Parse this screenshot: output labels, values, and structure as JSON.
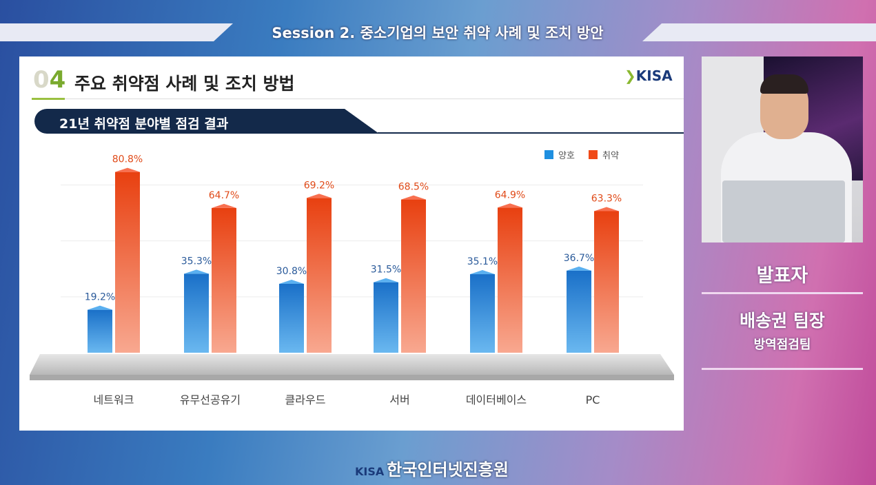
{
  "banner": {
    "title": "Session  2. 중소기업의 보안 취약 사례 및 조치 방안"
  },
  "slide": {
    "section_number_prefix": "0",
    "section_number": "4",
    "title": "주요 취약점 사례 및 조치 방법",
    "logo": "KISA",
    "subtitle": "21년 취약점 분야별 점검 결과"
  },
  "chart_data": {
    "type": "bar",
    "title": "21년 취약점 분야별 점검 결과",
    "categories": [
      "네트워크",
      "유무선공유기",
      "클라우드",
      "서버",
      "데이터베이스",
      "PC"
    ],
    "series": [
      {
        "name": "양호",
        "color": "#1e8fe0",
        "values": [
          19.2,
          35.3,
          30.8,
          31.5,
          35.1,
          36.7
        ],
        "labels": [
          "19.2%",
          "35.3%",
          "30.8%",
          "31.5%",
          "35.1%",
          "36.7%"
        ]
      },
      {
        "name": "취약",
        "color": "#f04a18",
        "values": [
          80.8,
          64.7,
          69.2,
          68.5,
          64.9,
          63.3
        ],
        "labels": [
          "80.8%",
          "64.7%",
          "69.2%",
          "68.5%",
          "64.9%",
          "63.3%"
        ]
      }
    ],
    "ylim": [
      0,
      100
    ],
    "legend": "top-right",
    "grid": true
  },
  "presenter": {
    "label": "발표자",
    "name": "배송권 팀장",
    "team": "방역점검팀"
  },
  "footer": {
    "logo": "KISA",
    "org": "한국인터넷진흥원"
  }
}
